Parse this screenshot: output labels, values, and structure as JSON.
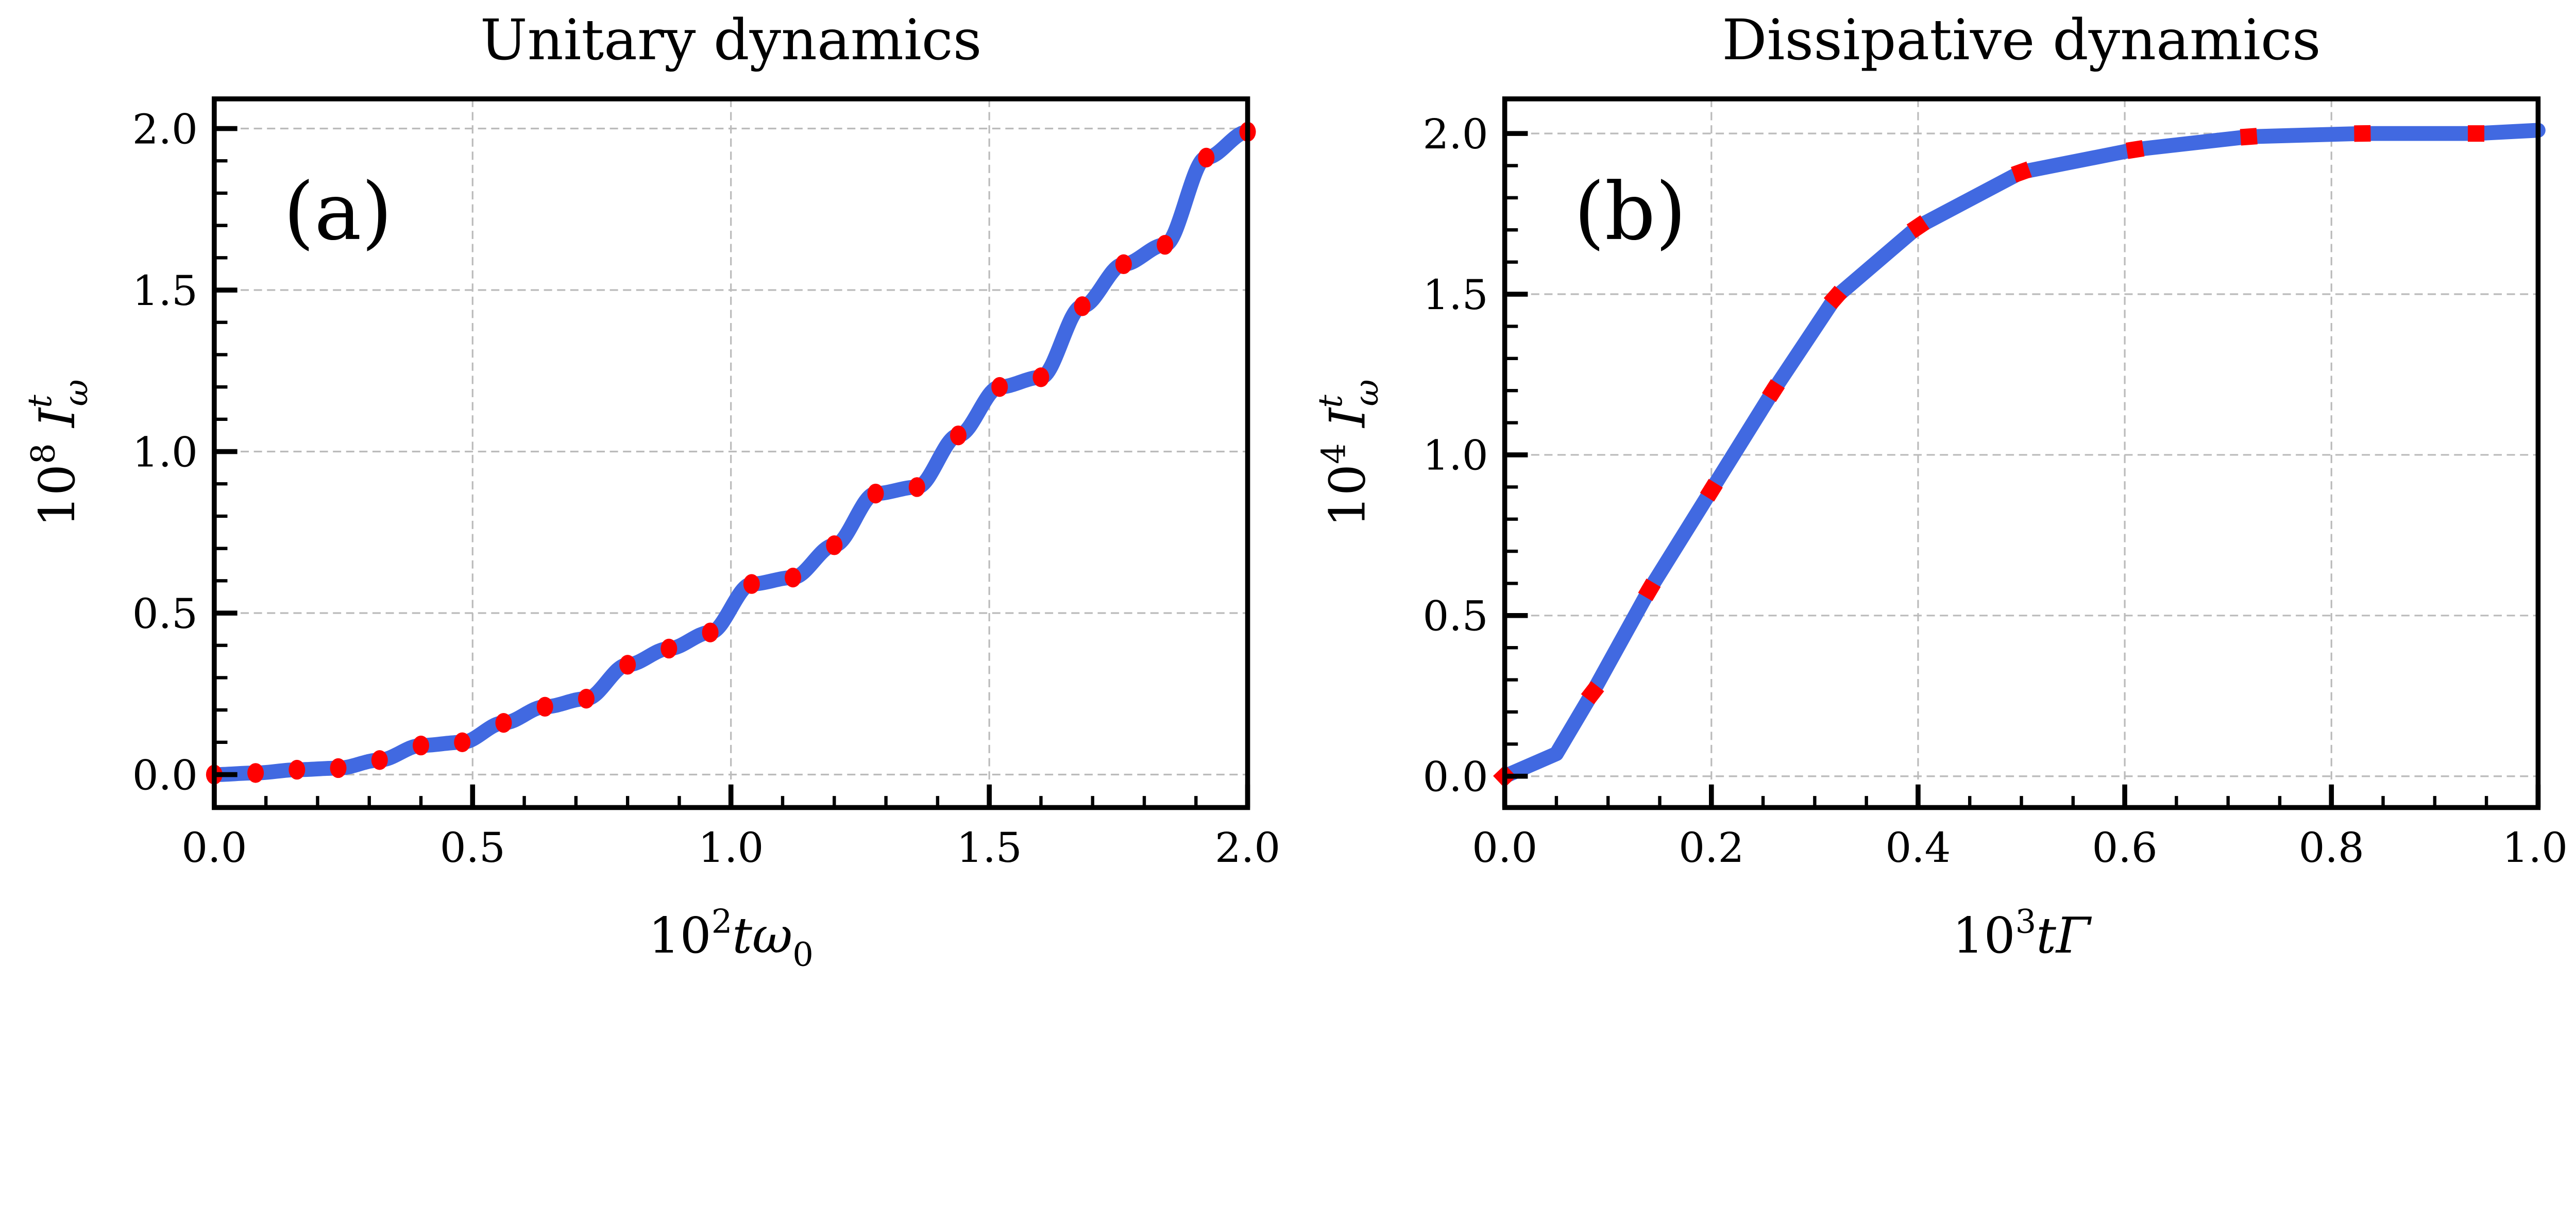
{
  "chart_data": [
    {
      "type": "line",
      "title": "Unitary dynamics",
      "panel_label": "(a)",
      "xlabel": {
        "prefix": "10",
        "exp": "2",
        "var": "tω",
        "sub": "0"
      },
      "ylabel": {
        "prefix": "10",
        "exp": "8",
        "var": "I",
        "sup": "t",
        "sub": "ω"
      },
      "xlim": [
        0,
        2.0
      ],
      "ylim": [
        -0.1,
        2.1
      ],
      "xticks": [
        "0.0",
        "0.5",
        "1.0",
        "1.5",
        "2.0"
      ],
      "yticks": [
        "0.0",
        "0.5",
        "1.0",
        "1.5",
        "2.0"
      ],
      "grid": true,
      "line_color": "#4169e1",
      "marker_color": "#ff0000",
      "marker": "circle",
      "x": [
        0,
        0.08,
        0.16,
        0.24,
        0.32,
        0.4,
        0.48,
        0.56,
        0.64,
        0.72,
        0.8,
        0.88,
        0.96,
        1.04,
        1.12,
        1.2,
        1.28,
        1.36,
        1.44,
        1.52,
        1.6,
        1.68,
        1.76,
        1.84,
        1.92,
        2.0
      ],
      "values": [
        0,
        0.005,
        0.015,
        0.02,
        0.045,
        0.09,
        0.1,
        0.16,
        0.21,
        0.235,
        0.34,
        0.39,
        0.44,
        0.59,
        0.61,
        0.71,
        0.87,
        0.89,
        1.05,
        1.2,
        1.23,
        1.45,
        1.58,
        1.64,
        1.91,
        1.99
      ]
    },
    {
      "type": "line",
      "title": "Dissipative dynamics",
      "panel_label": "(b)",
      "xlabel": {
        "prefix": "10",
        "exp": "3",
        "var": "tΓ",
        "sub": ""
      },
      "ylabel": {
        "prefix": "10",
        "exp": "4",
        "var": "I",
        "sup": "t",
        "sub": "ω"
      },
      "xlim": [
        0,
        1.0
      ],
      "ylim": [
        -0.1,
        2.1
      ],
      "xticks": [
        "0.0",
        "0.2",
        "0.4",
        "0.6",
        "0.8",
        "1.0"
      ],
      "yticks": [
        "0.0",
        "0.5",
        "1.0",
        "1.5",
        "2.0"
      ],
      "grid": true,
      "line_color": "#4169e1",
      "marker_color": "#ff0000",
      "marker": "dash",
      "line_x": [
        0,
        0.05,
        0.085,
        0.14,
        0.2,
        0.26,
        0.32,
        0.4,
        0.5,
        0.61,
        0.72,
        0.83,
        0.94,
        1.0
      ],
      "line_values": [
        0,
        0.07,
        0.26,
        0.58,
        0.89,
        1.2,
        1.49,
        1.71,
        1.88,
        1.95,
        1.99,
        2.0,
        2.0,
        2.01
      ],
      "x": [
        0,
        0.085,
        0.14,
        0.2,
        0.26,
        0.32,
        0.4,
        0.5,
        0.61,
        0.72,
        0.83,
        0.94
      ],
      "values": [
        0,
        0.26,
        0.58,
        0.89,
        1.2,
        1.49,
        1.71,
        1.88,
        1.95,
        1.99,
        2.0,
        2.0
      ]
    }
  ]
}
